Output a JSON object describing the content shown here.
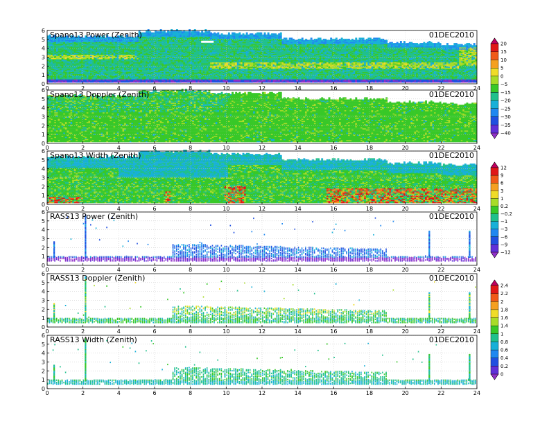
{
  "chart_data": {
    "type": "heatmap",
    "x_ticks": [
      0,
      2,
      4,
      6,
      8,
      10,
      12,
      14,
      16,
      18,
      20,
      22,
      24
    ],
    "y_ticks": [
      0,
      1,
      2,
      3,
      4,
      5,
      6
    ],
    "xlim": [
      0,
      24
    ],
    "ylim": [
      0,
      6
    ],
    "grid": true,
    "panels": [
      {
        "title": "Spano13 Power (Zenith)",
        "date": "01DEC2010",
        "colorbar": 0,
        "mode": "spano",
        "field": "power"
      },
      {
        "title": "Spano13 Doppler (Zenith)",
        "date": "01DEC2010",
        "colorbar": 0,
        "mode": "spano",
        "field": "doppler"
      },
      {
        "title": "Spano13 Width (Zenith)",
        "date": "01DEC2010",
        "colorbar": 1,
        "mode": "spano",
        "field": "width"
      },
      {
        "title": "RASS13 Power (Zenith)",
        "date": "01DEC2010",
        "colorbar": 1,
        "mode": "rass",
        "field": "power"
      },
      {
        "title": "RASS13 Doppler (Zenith)",
        "date": "01DEC2010",
        "colorbar": 2,
        "mode": "rass",
        "field": "doppler"
      },
      {
        "title": "RASS13 Width (Zenith)",
        "date": "01DEC2010",
        "colorbar": 2,
        "mode": "rass",
        "field": "width"
      }
    ],
    "colorbars": [
      {
        "labels": [
          "20",
          "15",
          "10",
          "5",
          "0",
          "−5",
          "−15",
          "−20",
          "−25",
          "−30",
          "−35",
          "−40"
        ],
        "colors": [
          "#c00060",
          "#e01818",
          "#f05a18",
          "#f5a020",
          "#f0dc28",
          "#a8dc28",
          "#38c828",
          "#20c08c",
          "#18b0d8",
          "#2088f0",
          "#2050e0",
          "#6030d8",
          "#9030c8"
        ]
      },
      {
        "labels": [
          "12",
          "9",
          "6",
          "3",
          "1",
          "0.2",
          "−0.2",
          "−1",
          "−3",
          "−6",
          "−9",
          "−12"
        ],
        "colors": [
          "#c00060",
          "#e01818",
          "#f05a18",
          "#f5a020",
          "#f0dc28",
          "#a8dc28",
          "#38c828",
          "#20c08c",
          "#18b0d8",
          "#2088f0",
          "#2050e0",
          "#6030d8",
          "#9030c8"
        ]
      },
      {
        "labels": [
          "2.4",
          "2.2",
          "2",
          "1.8",
          "1.6",
          "1.4",
          "1",
          "0.8",
          "0.6",
          "0.4",
          "0.2",
          "0"
        ],
        "colors": [
          "#c00060",
          "#e01818",
          "#f05a18",
          "#f5a020",
          "#f0dc28",
          "#a8dc28",
          "#38c828",
          "#20c08c",
          "#18b0d8",
          "#2088f0",
          "#2050e0",
          "#6030d8",
          "#9030c8"
        ]
      }
    ]
  }
}
